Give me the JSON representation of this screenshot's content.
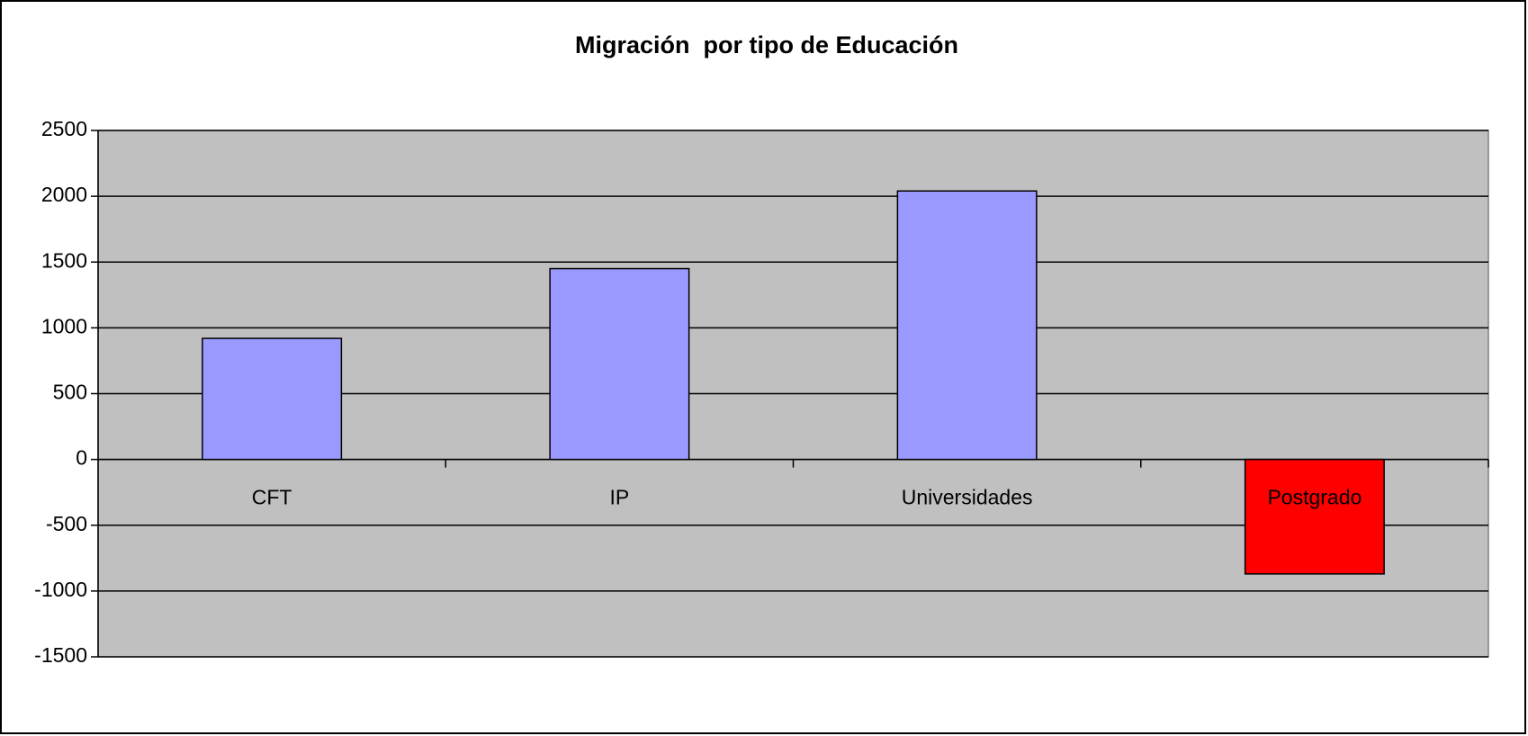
{
  "chart_data": {
    "type": "bar",
    "title": "Migración  por tipo de Educación",
    "categories": [
      "CFT",
      "IP",
      "Universidades",
      "Postgrado"
    ],
    "values": [
      920,
      1450,
      2040,
      -870
    ],
    "colors": [
      "#9999ff",
      "#9999ff",
      "#9999ff",
      "#ff0000"
    ],
    "ylim": [
      -1500,
      2500
    ],
    "yticks": [
      -1500,
      -1000,
      -500,
      0,
      500,
      1000,
      1500,
      2000,
      2500
    ],
    "grid": true
  }
}
